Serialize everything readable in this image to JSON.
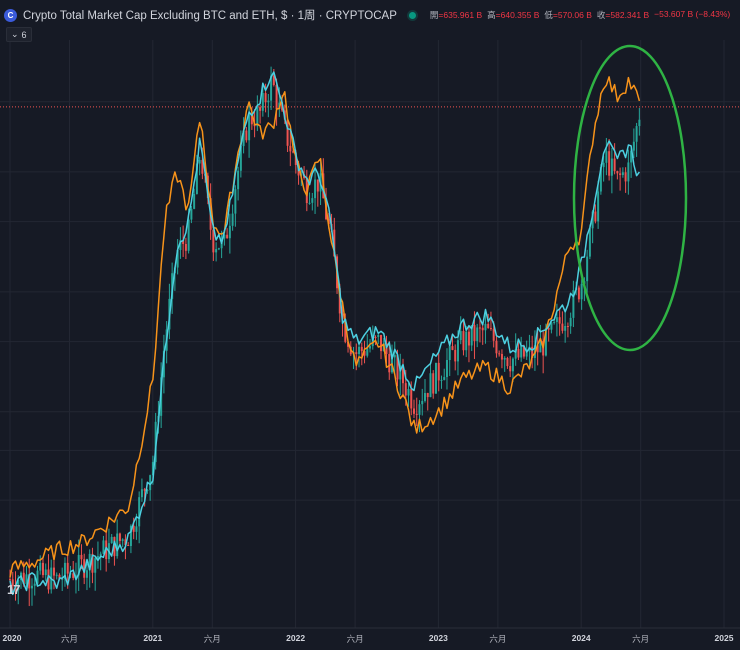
{
  "header": {
    "logo_letter": "C",
    "title": "Crypto Total Market Cap Excluding BTC and ETH, $ · 1周 · CRYPTOCAP",
    "ohlc": [
      {
        "key": "開",
        "value": "=635.961 B"
      },
      {
        "key": "高",
        "value": "=640.355 B"
      },
      {
        "key": "低",
        "value": "=570.06 B"
      },
      {
        "key": "收",
        "value": "=582.341 B"
      },
      {
        "key": "",
        "value": "−53.607 B (−8.43%)"
      }
    ]
  },
  "indicator_toggle": {
    "chevron": "⌄",
    "count": "6"
  },
  "watermark": "17",
  "colors": {
    "background": "#161a25",
    "grid": "#232733",
    "up": "#26a69a",
    "down": "#ef5350",
    "orange_line": "#f7931a",
    "cyan_line": "#4dd0e1",
    "price_line": "#ef5350",
    "annotation": "#2fb344"
  },
  "chart_data": {
    "type": "line",
    "y_scale": "log",
    "ylim": [
      30,
      800
    ],
    "xlim": [
      "2020-01",
      "2025-02"
    ],
    "x_ticks": [
      "2020",
      "六月",
      "2021",
      "六月",
      "2022",
      "六月",
      "2023",
      "六月",
      "2024",
      "六月",
      "2025"
    ],
    "last_close": 582.341,
    "series": [
      {
        "color": "orange",
        "x": [
          "2020-01",
          "2020-03",
          "2020-05",
          "2020-07",
          "2020-09",
          "2020-11",
          "2021-01",
          "2021-02",
          "2021-03",
          "2021-04",
          "2021-05",
          "2021-06",
          "2021-07",
          "2021-08",
          "2021-09",
          "2021-10",
          "2021-11",
          "2021-12",
          "2022-01",
          "2022-02",
          "2022-03",
          "2022-04",
          "2022-05",
          "2022-06",
          "2022-08",
          "2022-10",
          "2022-11",
          "2023-01",
          "2023-03",
          "2023-05",
          "2023-07",
          "2023-09",
          "2023-10",
          "2023-12",
          "2024-01",
          "2024-02",
          "2024-03",
          "2024-04",
          "2024-05",
          "2024-06"
        ],
        "values": [
          40,
          42,
          45,
          47,
          52,
          58,
          120,
          300,
          400,
          320,
          560,
          300,
          280,
          420,
          600,
          500,
          520,
          650,
          420,
          360,
          440,
          270,
          180,
          130,
          150,
          110,
          90,
          100,
          120,
          130,
          115,
          135,
          155,
          260,
          280,
          500,
          700,
          620,
          680,
          590
        ]
      },
      {
        "color": "cyan",
        "x": [
          "2020-01",
          "2020-03",
          "2020-05",
          "2020-07",
          "2020-09",
          "2020-11",
          "2021-01",
          "2021-02",
          "2021-03",
          "2021-04",
          "2021-05",
          "2021-06",
          "2021-07",
          "2021-08",
          "2021-09",
          "2021-10",
          "2021-11",
          "2021-12",
          "2022-01",
          "2022-02",
          "2022-03",
          "2022-04",
          "2022-05",
          "2022-06",
          "2022-08",
          "2022-10",
          "2022-11",
          "2023-01",
          "2023-03",
          "2023-05",
          "2023-07",
          "2023-09",
          "2023-10",
          "2023-12",
          "2024-01",
          "2024-02",
          "2024-03",
          "2024-04",
          "2024-05",
          "2024-06"
        ],
        "values": [
          36,
          38,
          37,
          40,
          44,
          48,
          70,
          140,
          260,
          300,
          480,
          280,
          270,
          400,
          560,
          620,
          720,
          580,
          440,
          380,
          400,
          290,
          170,
          150,
          160,
          130,
          115,
          140,
          165,
          175,
          145,
          150,
          165,
          190,
          230,
          330,
          480,
          420,
          470,
          380
        ]
      },
      {
        "color": "candles",
        "x": [
          "2020-01",
          "2020-03",
          "2020-05",
          "2020-07",
          "2020-09",
          "2020-11",
          "2021-01",
          "2021-02",
          "2021-03",
          "2021-04",
          "2021-05",
          "2021-06",
          "2021-07",
          "2021-08",
          "2021-09",
          "2021-10",
          "2021-11",
          "2021-12",
          "2022-01",
          "2022-02",
          "2022-03",
          "2022-04",
          "2022-05",
          "2022-06",
          "2022-08",
          "2022-10",
          "2022-11",
          "2023-01",
          "2023-03",
          "2023-05",
          "2023-07",
          "2023-09",
          "2023-10",
          "2023-12",
          "2024-01",
          "2024-02",
          "2024-03",
          "2024-04",
          "2024-05",
          "2024-06"
        ],
        "values": [
          38,
          39,
          38,
          41,
          45,
          49,
          75,
          150,
          250,
          280,
          450,
          270,
          260,
          380,
          540,
          560,
          680,
          520,
          420,
          360,
          380,
          270,
          165,
          140,
          150,
          120,
          105,
          125,
          150,
          160,
          135,
          140,
          150,
          180,
          210,
          300,
          440,
          380,
          410,
          582
        ]
      }
    ],
    "annotations": [
      "green-ellipse-2024"
    ]
  }
}
